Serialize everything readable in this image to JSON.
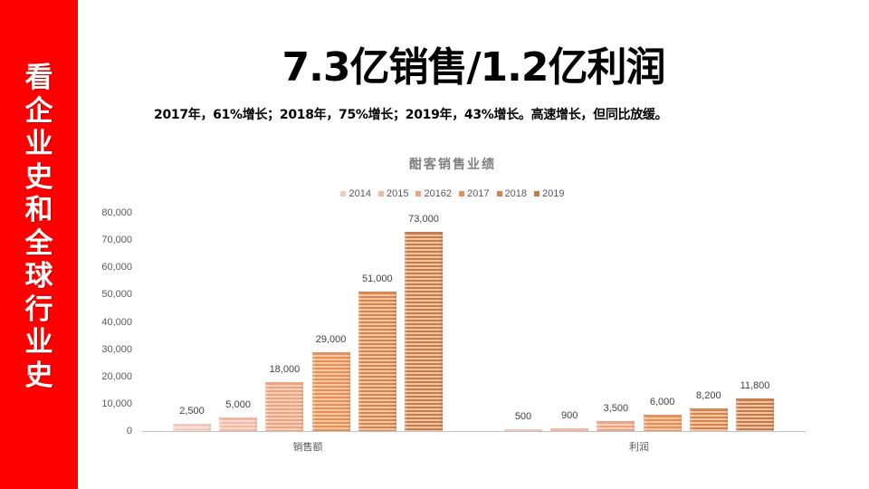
{
  "sidebar": {
    "text": "看企业史和全球行业史",
    "chars": [
      "看",
      "企",
      "业",
      "史",
      "和",
      "全",
      "球",
      "行",
      "业",
      "史"
    ],
    "background": "#fe0000"
  },
  "header": {
    "title": "7.3亿销售/1.2亿利润",
    "subtitle": "2017年，61%增长；2018年，75%增长；2019年，43%增长。高速增长，但同比放缓。"
  },
  "chart_data": {
    "type": "bar",
    "title": "酣客销售业绩",
    "categories": [
      "销售额",
      "利润"
    ],
    "series": [
      {
        "name": "2014",
        "values": [
          2500,
          500
        ],
        "color_dark": "#f3c9bd",
        "color_light": "#fbe3dc"
      },
      {
        "name": "2015",
        "values": [
          5000,
          900
        ],
        "color_dark": "#f2b9a5",
        "color_light": "#fbd9cc"
      },
      {
        "name": "20162",
        "values": [
          18000,
          3500
        ],
        "color_dark": "#eea482",
        "color_light": "#fbd0b8"
      },
      {
        "name": "2017",
        "values": [
          29000,
          6000
        ],
        "color_dark": "#e38f5a",
        "color_light": "#f9c79d"
      },
      {
        "name": "2018",
        "values": [
          51000,
          8200
        ],
        "color_dark": "#d48350",
        "color_light": "#f5c69f"
      },
      {
        "name": "2019",
        "values": [
          73000,
          11800
        ],
        "color_dark": "#c57a4c",
        "color_light": "#f2c4a0"
      }
    ],
    "data_labels": [
      [
        "2,500",
        "5,000",
        "18,000",
        "29,000",
        "51,000",
        "73,000"
      ],
      [
        "500",
        "900",
        "3,500",
        "6,000",
        "8,200",
        "11,800"
      ]
    ],
    "xlabel": "",
    "ylabel": "",
    "ylim": [
      0,
      80000
    ],
    "yticks": [
      "80,000",
      "70,000",
      "60,000",
      "50,000",
      "40,000",
      "30,000",
      "20,000",
      "10,000",
      "0"
    ],
    "grid": false,
    "legend_position": "top"
  }
}
